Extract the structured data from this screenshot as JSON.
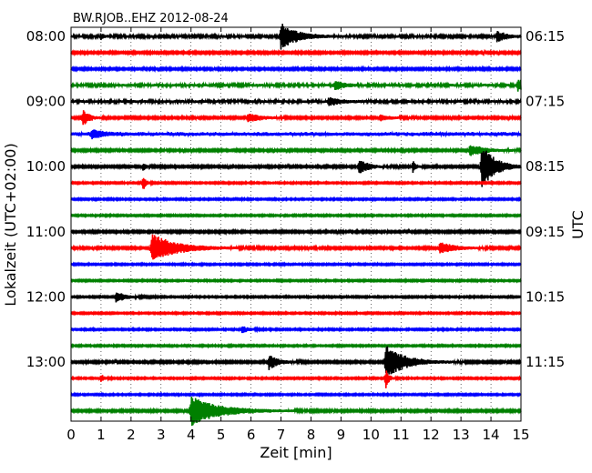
{
  "chart_data": {
    "type": "line",
    "title": "BW.RJOB..EHZ 2012-08-24",
    "xlabel": "Zeit  [min]",
    "ylabel_left": "Lokalzeit (UTC+02:00)",
    "ylabel_right": "UTC",
    "xlim": [
      0,
      15
    ],
    "x_ticks": [
      0,
      1,
      2,
      3,
      4,
      5,
      6,
      7,
      8,
      9,
      10,
      11,
      12,
      13,
      14,
      15
    ],
    "grid": "vertical-dotted",
    "trace_colors": [
      "#000000",
      "#ff0000",
      "#0000ff",
      "#008000"
    ],
    "left_ticks": [
      "08:00",
      "09:00",
      "10:00",
      "11:00",
      "12:00",
      "13:00"
    ],
    "right_ticks": [
      "06:15",
      "07:15",
      "08:15",
      "09:15",
      "10:15",
      "11:15"
    ],
    "rows_per_hour": 4,
    "traces": [
      {
        "row": 0,
        "events": [
          {
            "t": 7.0,
            "amp": 14,
            "dur": 0.5
          },
          {
            "t": 14.2,
            "amp": 6,
            "dur": 0.3
          },
          {
            "t": 1.0,
            "amp": 3,
            "dur": 0.1
          }
        ],
        "noise": 1.6
      },
      {
        "row": 1,
        "events": [],
        "noise": 1.3
      },
      {
        "row": 2,
        "events": [],
        "noise": 1.3
      },
      {
        "row": 3,
        "events": [
          {
            "t": 8.8,
            "amp": 5,
            "dur": 0.3
          },
          {
            "t": 14.9,
            "amp": 7,
            "dur": 0.2
          }
        ],
        "noise": 1.8
      },
      {
        "row": 4,
        "events": [
          {
            "t": 8.6,
            "amp": 4,
            "dur": 0.4
          }
        ],
        "noise": 1.8
      },
      {
        "row": 5,
        "events": [
          {
            "t": 0.4,
            "amp": 9,
            "dur": 0.2
          },
          {
            "t": 5.9,
            "amp": 5,
            "dur": 0.4
          },
          {
            "t": 10.3,
            "amp": 3,
            "dur": 0.3
          }
        ],
        "noise": 1.3
      },
      {
        "row": 6,
        "events": [
          {
            "t": 0.7,
            "amp": 5,
            "dur": 0.3
          }
        ],
        "noise": 2.4
      },
      {
        "row": 7,
        "events": [
          {
            "t": 13.3,
            "amp": 6,
            "dur": 0.5
          }
        ],
        "noise": 1.3
      },
      {
        "row": 8,
        "events": [
          {
            "t": 13.7,
            "amp": 26,
            "dur": 0.4
          },
          {
            "t": 9.6,
            "amp": 8,
            "dur": 0.3
          },
          {
            "t": 11.4,
            "amp": 6,
            "dur": 0.1
          },
          {
            "t": 2.4,
            "amp": 4,
            "dur": 0.1
          }
        ],
        "noise": 1.3
      },
      {
        "row": 9,
        "events": [
          {
            "t": 2.4,
            "amp": 8,
            "dur": 0.1
          }
        ],
        "noise": 1.0
      },
      {
        "row": 10,
        "events": [],
        "noise": 1.0
      },
      {
        "row": 11,
        "events": [],
        "noise": 1.0
      },
      {
        "row": 12,
        "events": [],
        "noise": 1.3
      },
      {
        "row": 13,
        "events": [
          {
            "t": 2.7,
            "amp": 15,
            "dur": 0.8
          },
          {
            "t": 12.3,
            "amp": 6,
            "dur": 0.5
          }
        ],
        "noise": 1.3
      },
      {
        "row": 14,
        "events": [],
        "noise": 1.0
      },
      {
        "row": 15,
        "events": [],
        "noise": 1.0
      },
      {
        "row": 16,
        "events": [
          {
            "t": 1.5,
            "amp": 6,
            "dur": 0.3
          }
        ],
        "noise": 1.0
      },
      {
        "row": 17,
        "events": [],
        "noise": 1.0
      },
      {
        "row": 18,
        "events": [
          {
            "t": 5.7,
            "amp": 4,
            "dur": 0.2
          }
        ],
        "noise": 1.0
      },
      {
        "row": 19,
        "events": [],
        "noise": 1.0
      },
      {
        "row": 20,
        "events": [
          {
            "t": 10.5,
            "amp": 18,
            "dur": 0.6
          },
          {
            "t": 6.6,
            "amp": 8,
            "dur": 0.3
          }
        ],
        "noise": 1.3
      },
      {
        "row": 21,
        "events": [
          {
            "t": 1.0,
            "amp": 5,
            "dur": 0.1
          },
          {
            "t": 10.5,
            "amp": 10,
            "dur": 0.1
          }
        ],
        "noise": 1.0
      },
      {
        "row": 22,
        "events": [],
        "noise": 1.0
      },
      {
        "row": 23,
        "events": [
          {
            "t": 4.0,
            "amp": 16,
            "dur": 0.9
          }
        ],
        "noise": 1.3
      }
    ]
  }
}
